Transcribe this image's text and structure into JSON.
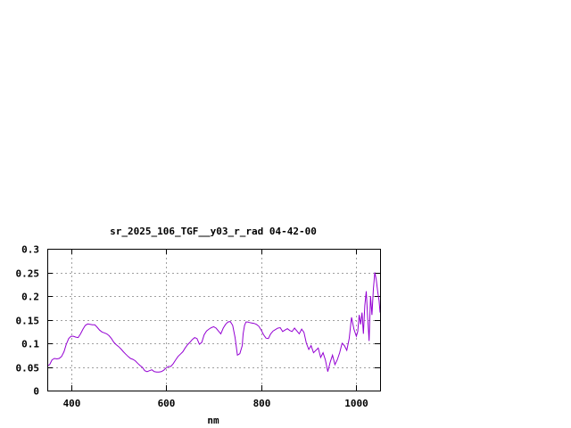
{
  "chart_data": {
    "type": "line",
    "title": "sr_2025_106_TGF__y03_r_rad 04-42-00",
    "xlabel": "nm",
    "ylabel": "",
    "xlim": [
      350,
      1050
    ],
    "ylim": [
      0,
      0.3
    ],
    "xticks": [
      400,
      600,
      800,
      1000
    ],
    "xtick_labels": [
      "400",
      "600",
      "800",
      "1000"
    ],
    "yticks": [
      0,
      0.05,
      0.1,
      0.15,
      0.2,
      0.25,
      0.3
    ],
    "ytick_labels": [
      "0",
      "0.05",
      "0.1",
      "0.15",
      "0.2",
      "0.25",
      "0.3"
    ],
    "grid": true,
    "legend": "none",
    "line_color": "#9400d3",
    "series": [
      {
        "x": [
          350,
          355,
          360,
          365,
          370,
          375,
          380,
          385,
          390,
          395,
          400,
          405,
          410,
          415,
          420,
          425,
          430,
          435,
          440,
          445,
          450,
          455,
          460,
          465,
          470,
          475,
          480,
          485,
          490,
          495,
          500,
          505,
          510,
          515,
          520,
          525,
          530,
          535,
          540,
          545,
          550,
          555,
          560,
          565,
          570,
          575,
          580,
          585,
          590,
          595,
          600,
          605,
          610,
          615,
          620,
          625,
          630,
          635,
          640,
          645,
          650,
          655,
          660,
          665,
          670,
          675,
          680,
          685,
          690,
          695,
          700,
          705,
          710,
          715,
          720,
          725,
          730,
          735,
          740,
          745,
          750,
          755,
          760,
          762,
          765,
          768,
          772,
          775,
          780,
          785,
          790,
          795,
          800,
          805,
          810,
          815,
          820,
          825,
          830,
          835,
          840,
          845,
          850,
          855,
          860,
          865,
          870,
          875,
          880,
          885,
          890,
          895,
          900,
          905,
          910,
          915,
          920,
          925,
          930,
          935,
          940,
          945,
          950,
          955,
          960,
          965,
          970,
          975,
          980,
          985,
          990,
          995,
          1000,
          1003,
          1006,
          1009,
          1012,
          1015,
          1018,
          1021,
          1024,
          1027,
          1030,
          1033,
          1036,
          1039,
          1042,
          1045,
          1048,
          1050
        ],
        "y": [
          0.052,
          0.055,
          0.065,
          0.068,
          0.067,
          0.068,
          0.072,
          0.082,
          0.098,
          0.11,
          0.115,
          0.115,
          0.113,
          0.112,
          0.12,
          0.13,
          0.138,
          0.141,
          0.14,
          0.139,
          0.139,
          0.134,
          0.128,
          0.124,
          0.122,
          0.12,
          0.116,
          0.11,
          0.102,
          0.097,
          0.093,
          0.088,
          0.082,
          0.077,
          0.072,
          0.068,
          0.066,
          0.063,
          0.058,
          0.053,
          0.049,
          0.042,
          0.04,
          0.042,
          0.044,
          0.04,
          0.039,
          0.039,
          0.04,
          0.043,
          0.048,
          0.051,
          0.051,
          0.057,
          0.065,
          0.072,
          0.077,
          0.082,
          0.09,
          0.097,
          0.102,
          0.108,
          0.112,
          0.11,
          0.098,
          0.102,
          0.118,
          0.126,
          0.13,
          0.133,
          0.135,
          0.132,
          0.126,
          0.12,
          0.132,
          0.14,
          0.145,
          0.146,
          0.138,
          0.112,
          0.075,
          0.078,
          0.095,
          0.12,
          0.138,
          0.145,
          0.145,
          0.144,
          0.143,
          0.142,
          0.14,
          0.136,
          0.128,
          0.118,
          0.111,
          0.11,
          0.12,
          0.126,
          0.129,
          0.132,
          0.133,
          0.125,
          0.128,
          0.131,
          0.127,
          0.125,
          0.132,
          0.126,
          0.12,
          0.13,
          0.123,
          0.1,
          0.087,
          0.095,
          0.08,
          0.085,
          0.09,
          0.07,
          0.08,
          0.065,
          0.04,
          0.06,
          0.075,
          0.055,
          0.065,
          0.08,
          0.1,
          0.095,
          0.085,
          0.11,
          0.155,
          0.13,
          0.115,
          0.125,
          0.16,
          0.14,
          0.165,
          0.12,
          0.18,
          0.21,
          0.155,
          0.105,
          0.2,
          0.16,
          0.215,
          0.25,
          0.235,
          0.21,
          0.19,
          0.165
        ]
      }
    ]
  }
}
